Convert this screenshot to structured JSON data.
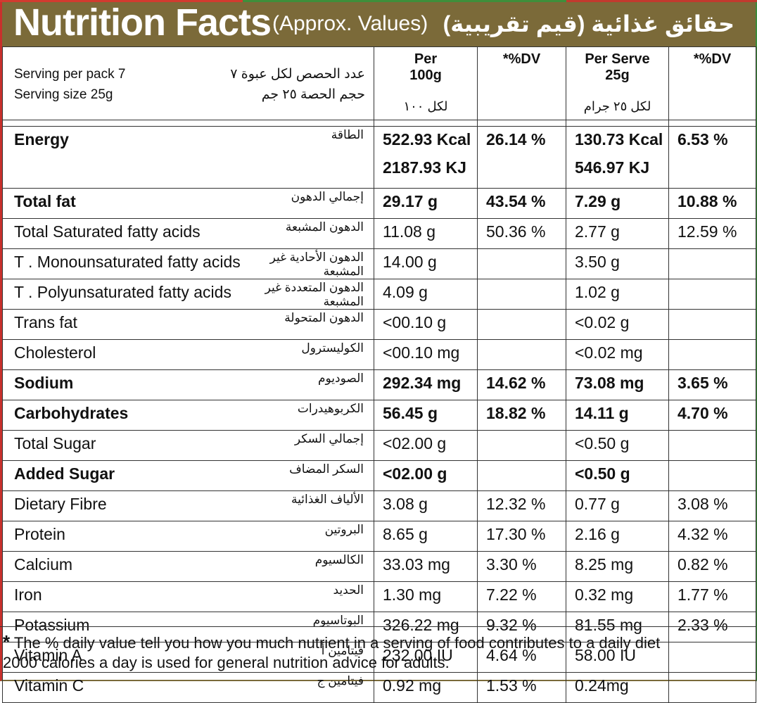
{
  "header": {
    "title": "Nutrition Facts",
    "subtitle": "(Approx. Values)",
    "title_ar": "حقائق غذائية (قيم تقريبية)"
  },
  "columns": {
    "per100_title": "Per",
    "per100_sub": "100g",
    "per100_ar": "لكل ١٠٠",
    "dv1": "*%DV",
    "serve_title": "Per Serve",
    "serve_sub": "25g",
    "serve_ar": "لكل ٢٥ جرام",
    "dv2": "*%DV"
  },
  "serving": {
    "per_pack": "Serving per pack 7",
    "size": "Serving size 25g",
    "per_pack_ar": "عدد الحصص لكل عبوة ٧",
    "size_ar": "حجم الحصة ٢٥ جم"
  },
  "energy": {
    "name": "Energy",
    "name_ar": "الطاقة",
    "per100_kcal": "522.93 Kcal",
    "per100_kj": "2187.93 KJ",
    "dv100": "26.14 %",
    "serve_kcal": "130.73 Kcal",
    "serve_kj": "546.97 KJ",
    "dv_serve": "6.53 %"
  },
  "rows": [
    {
      "name": "Total fat",
      "ar": "إجمالي الدهون",
      "v100": "29.17 g",
      "dv100": "43.54 %",
      "vs": "7.29 g",
      "dvs": "10.88 %"
    },
    {
      "name": "Total Saturated fatty acids",
      "ar": "الدهون المشبعة",
      "v100": "11.08 g",
      "dv100": "50.36 %",
      "vs": "2.77 g",
      "dvs": "12.59 %"
    },
    {
      "name": "T . Monounsaturated fatty acids",
      "ar": "الدهون الأحادية غير المشبعة",
      "v100": "14.00 g",
      "dv100": "",
      "vs": "3.50 g",
      "dvs": ""
    },
    {
      "name": "T . Polyunsaturated fatty acids",
      "ar": "الدهون المتعددة غير المشبعة",
      "v100": "4.09 g",
      "dv100": "",
      "vs": "1.02 g",
      "dvs": ""
    },
    {
      "name": "Trans fat",
      "ar": "الدهون المتحولة",
      "v100": "<00.10 g",
      "dv100": "",
      "vs": "<0.02 g",
      "dvs": ""
    },
    {
      "name": "Cholesterol",
      "ar": "الكوليسترول",
      "v100": "<00.10 mg",
      "dv100": "",
      "vs": "<0.02 mg",
      "dvs": ""
    },
    {
      "name": "Sodium",
      "ar": "الصوديوم",
      "v100": "292.34 mg",
      "dv100": "14.62 %",
      "vs": "73.08 mg",
      "dvs": "3.65 %"
    },
    {
      "name": "Carbohydrates",
      "ar": "الكربوهيدرات",
      "v100": "56.45 g",
      "dv100": "18.82 %",
      "vs": "14.11 g",
      "dvs": "4.70 %"
    },
    {
      "name": "Total Sugar",
      "ar": "إجمالي السكر",
      "v100": "<02.00 g",
      "dv100": "",
      "vs": "<0.50 g",
      "dvs": ""
    },
    {
      "name": "Added Sugar",
      "ar": "السكر المضاف",
      "v100": "<02.00 g",
      "dv100": "",
      "vs": "<0.50 g",
      "dvs": ""
    },
    {
      "name": "Dietary Fibre",
      "ar": "الألياف الغذائية",
      "v100": "3.08 g",
      "dv100": "12.32 %",
      "vs": "0.77 g",
      "dvs": "3.08 %"
    },
    {
      "name": "Protein",
      "ar": "البروتين",
      "v100": "8.65 g",
      "dv100": "17.30 %",
      "vs": "2.16 g",
      "dvs": "4.32 %"
    },
    {
      "name": "Calcium",
      "ar": "الكالسيوم",
      "v100": "33.03 mg",
      "dv100": "3.30 %",
      "vs": "8.25 mg",
      "dvs": "0.82 %"
    },
    {
      "name": "Iron",
      "ar": "الحديد",
      "v100": "1.30 mg",
      "dv100": "7.22 %",
      "vs": "0.32 mg",
      "dvs": "1.77 %"
    },
    {
      "name": "Potassium",
      "ar": "البوتاسيوم",
      "v100": "326.22 mg",
      "dv100": "9.32 %",
      "vs": "81.55 mg",
      "dvs": "2.33 %"
    },
    {
      "name": "Vitamin A",
      "ar": "فيتامين أ",
      "v100": "232.00 IU",
      "dv100": "4.64 %",
      "vs": "58.00 IU",
      "dvs": ""
    },
    {
      "name": "Vitamin C",
      "ar": "فيتامين ج",
      "v100": "0.92 mg",
      "dv100": "1.53 %",
      "vs": "0.24mg",
      "dvs": ""
    }
  ],
  "footer": {
    "star": "*",
    "line1": "The % daily value tell you how you much nutrient in a serving of food contributes to a daily diet",
    "line2": "2000 calories a day is used for general nutrition advice for adults."
  },
  "colors": {
    "header_bg": "#7b6a39",
    "border_red": "#c8302c",
    "border_green": "#3b8b3a"
  }
}
